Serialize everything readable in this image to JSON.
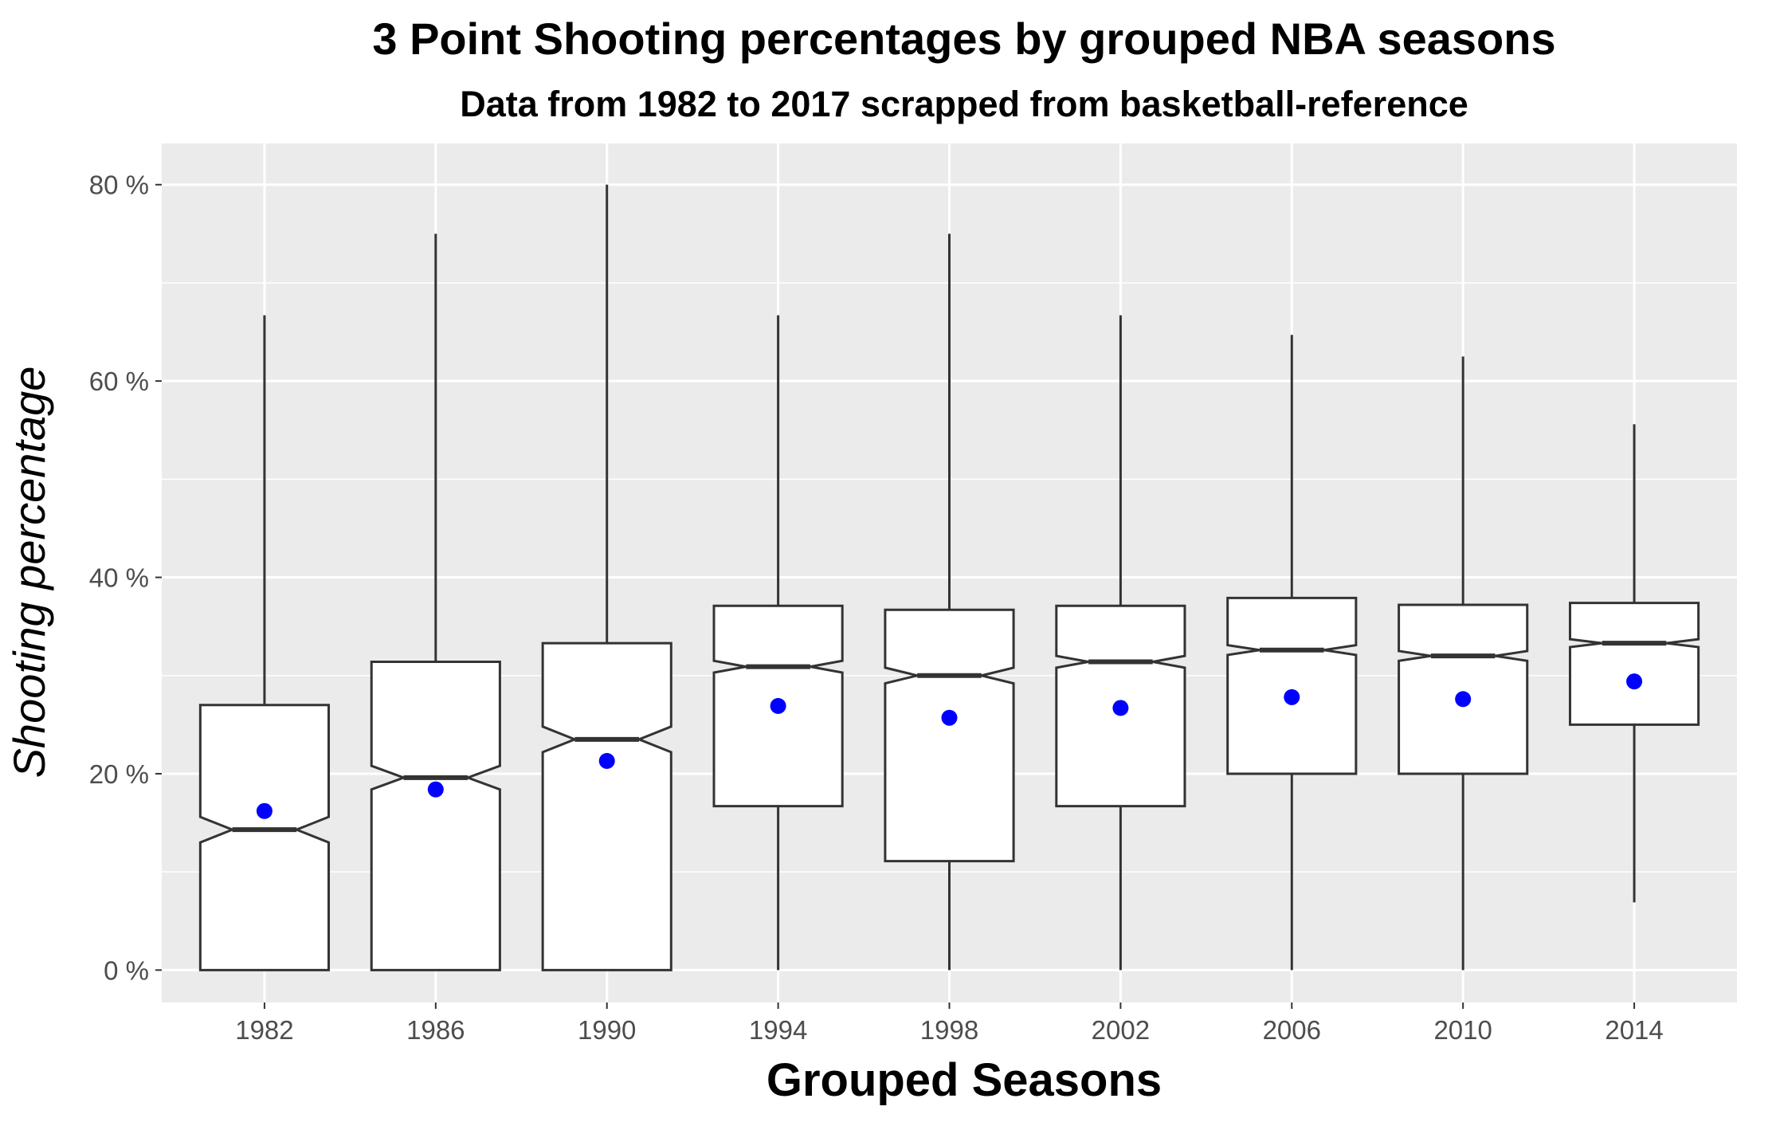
{
  "chart_data": {
    "type": "boxplot",
    "notched": true,
    "title": "3 Point Shooting percentages by grouped NBA seasons",
    "subtitle": "Data from 1982 to 2017 scrapped from basketball-reference",
    "xlabel": "Grouped Seasons",
    "ylabel": "Shooting percentage",
    "ylim": [
      -3.3,
      84.2
    ],
    "yticks": [
      0,
      20,
      40,
      60,
      80
    ],
    "ytick_labels": [
      "0 %",
      "20 %",
      "40 %",
      "60 %",
      "80 %"
    ],
    "categories": [
      "1982",
      "1986",
      "1990",
      "1994",
      "1998",
      "2002",
      "2006",
      "2010",
      "2014"
    ],
    "boxes": [
      {
        "category": "1982",
        "whisker_low": 0.0,
        "q1": 0.0,
        "median": 14.3,
        "q3": 27.0,
        "whisker_high": 66.7,
        "notch_low": 13.0,
        "notch_high": 15.6,
        "mean": 16.2
      },
      {
        "category": "1986",
        "whisker_low": 0.0,
        "q1": 0.0,
        "median": 19.6,
        "q3": 31.4,
        "whisker_high": 75.0,
        "notch_low": 18.4,
        "notch_high": 20.8,
        "mean": 18.4
      },
      {
        "category": "1990",
        "whisker_low": 0.0,
        "q1": 0.0,
        "median": 23.5,
        "q3": 33.3,
        "whisker_high": 80.0,
        "notch_low": 22.2,
        "notch_high": 24.8,
        "mean": 21.3
      },
      {
        "category": "1994",
        "whisker_low": 0.0,
        "q1": 16.7,
        "median": 30.9,
        "q3": 37.1,
        "whisker_high": 66.7,
        "notch_low": 30.3,
        "notch_high": 31.5,
        "mean": 26.9
      },
      {
        "category": "1998",
        "whisker_low": 0.0,
        "q1": 11.1,
        "median": 30.0,
        "q3": 36.7,
        "whisker_high": 75.0,
        "notch_low": 29.2,
        "notch_high": 30.8,
        "mean": 25.7
      },
      {
        "category": "2002",
        "whisker_low": 0.0,
        "q1": 16.7,
        "median": 31.4,
        "q3": 37.1,
        "whisker_high": 66.7,
        "notch_low": 30.8,
        "notch_high": 32.0,
        "mean": 26.7
      },
      {
        "category": "2006",
        "whisker_low": 0.0,
        "q1": 20.0,
        "median": 32.6,
        "q3": 37.9,
        "whisker_high": 64.7,
        "notch_low": 32.1,
        "notch_high": 33.1,
        "mean": 27.8
      },
      {
        "category": "2010",
        "whisker_low": 0.0,
        "q1": 20.0,
        "median": 32.0,
        "q3": 37.2,
        "whisker_high": 62.5,
        "notch_low": 31.5,
        "notch_high": 32.5,
        "mean": 27.6
      },
      {
        "category": "2014",
        "whisker_low": 6.9,
        "q1": 25.0,
        "median": 33.3,
        "q3": 37.4,
        "whisker_high": 55.6,
        "notch_low": 32.9,
        "notch_high": 33.7,
        "mean": 29.4
      }
    ],
    "mean_marker_color": "#0000ff",
    "panel_background": "#ebebeb",
    "grid": true,
    "grid_color": "#ffffff",
    "box_fill": "#ffffff",
    "box_line_color": "#333333"
  }
}
